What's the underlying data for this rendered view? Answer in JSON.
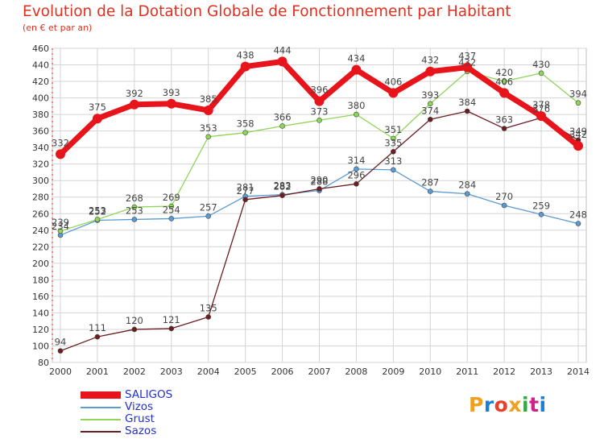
{
  "header": {
    "title": "Evolution de la Dotation Globale de Fonctionnement par Habitant",
    "subtitle": "(en € et par an)"
  },
  "logo": {
    "text": "Proxiti",
    "colors": [
      "#f0a020",
      "#1e7fd0",
      "#e8402a",
      "#f0a020",
      "#35a845",
      "#d0208a",
      "#1e7fd0"
    ]
  },
  "chart_data": {
    "type": "line",
    "title": "Evolution de la Dotation Globale de Fonctionnement par Habitant",
    "subtitle": "(en € et par an)",
    "x": [
      2000,
      2001,
      2002,
      2003,
      2004,
      2005,
      2006,
      2007,
      2008,
      2009,
      2010,
      2011,
      2012,
      2013,
      2014
    ],
    "ylim": [
      80,
      460
    ],
    "ytick_step": 20,
    "grid": true,
    "legend_position": "bottom-left",
    "series": [
      {
        "name": "SALIGOS",
        "color": "#e8141c",
        "emphasis": true,
        "values": [
          332,
          375,
          392,
          393,
          385,
          438,
          444,
          396,
          434,
          406,
          432,
          437,
          406,
          378,
          342
        ]
      },
      {
        "name": "Vizos",
        "color": "#5b9bd1",
        "emphasis": false,
        "values": [
          234,
          252,
          253,
          254,
          257,
          281,
          283,
          288,
          314,
          313,
          287,
          284,
          270,
          259,
          248
        ]
      },
      {
        "name": "Grust",
        "color": "#8fd55a",
        "emphasis": false,
        "values": [
          239,
          253,
          268,
          269,
          353,
          358,
          366,
          373,
          380,
          351,
          393,
          432,
          420,
          430,
          394
        ]
      },
      {
        "name": "Sazos",
        "color": "#6b1e22",
        "emphasis": false,
        "values": [
          94,
          111,
          120,
          121,
          135,
          277,
          282,
          290,
          296,
          335,
          374,
          384,
          363,
          376,
          349
        ]
      }
    ]
  }
}
